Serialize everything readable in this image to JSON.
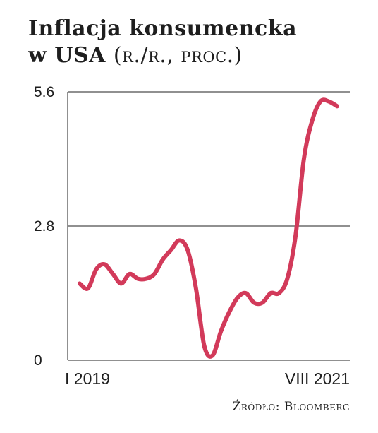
{
  "title_line1": "Inflacja konsumencka",
  "title_line2_main": "w USA",
  "title_line2_paren": "(r./r., proc.)",
  "source": "Źródło: Bloomberg",
  "chart_data": {
    "type": "line",
    "title": "Inflacja konsumencka w USA (r./r., proc.)",
    "xlabel": "",
    "ylabel": "",
    "x_tick_labels": [
      "I 2019",
      "VIII 2021"
    ],
    "y_ticks": [
      0,
      2.8,
      5.6
    ],
    "y_tick_labels": [
      "0",
      "2.8",
      "5.6"
    ],
    "ylim": [
      0,
      5.6
    ],
    "grid": "horizontal",
    "color": "#d23a5a",
    "x": [
      "2019-01",
      "2019-02",
      "2019-03",
      "2019-04",
      "2019-05",
      "2019-06",
      "2019-07",
      "2019-08",
      "2019-09",
      "2019-10",
      "2019-11",
      "2019-12",
      "2020-01",
      "2020-02",
      "2020-03",
      "2020-04",
      "2020-05",
      "2020-06",
      "2020-07",
      "2020-08",
      "2020-09",
      "2020-10",
      "2020-11",
      "2020-12",
      "2021-01",
      "2021-02",
      "2021-03",
      "2021-04",
      "2021-05",
      "2021-06",
      "2021-07",
      "2021-08"
    ],
    "series": [
      {
        "values": [
          1.6,
          1.5,
          1.9,
          2.0,
          1.8,
          1.6,
          1.8,
          1.7,
          1.7,
          1.8,
          2.1,
          2.3,
          2.5,
          2.3,
          1.5,
          0.3,
          0.1,
          0.6,
          1.0,
          1.3,
          1.4,
          1.2,
          1.2,
          1.4,
          1.4,
          1.7,
          2.6,
          4.2,
          5.0,
          5.4,
          5.4,
          5.3
        ]
      }
    ]
  }
}
